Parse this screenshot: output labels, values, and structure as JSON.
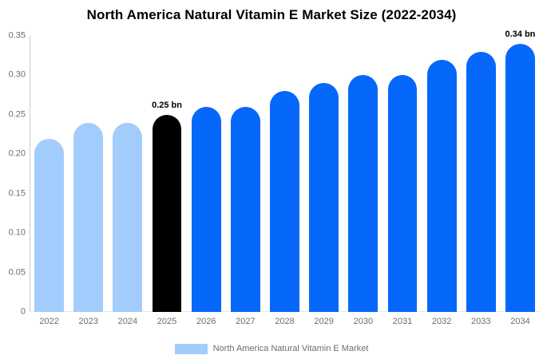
{
  "title": "North America Natural Vitamin E Market Size (2022-2034)",
  "chart_data": {
    "type": "bar",
    "title": "North America Natural Vitamin E Market Size (2022-2034)",
    "xlabel": "",
    "ylabel": "",
    "unit": "bn",
    "categories": [
      "2022",
      "2023",
      "2024",
      "2025",
      "2026",
      "2027",
      "2028",
      "2029",
      "2030",
      "2031",
      "2032",
      "2033",
      "2034"
    ],
    "values": [
      0.22,
      0.24,
      0.24,
      0.25,
      0.26,
      0.26,
      0.28,
      0.29,
      0.3,
      0.3,
      0.32,
      0.33,
      0.34
    ],
    "bar_colors": [
      "#a2ccfc",
      "#a2ccfc",
      "#a2ccfc",
      "#000000",
      "#0667fb",
      "#0667fb",
      "#0667fb",
      "#0667fb",
      "#0667fb",
      "#0667fb",
      "#0667fb",
      "#0667fb",
      "#0667fb"
    ],
    "annotations": [
      {
        "category": "2025",
        "label": "0.25 bn"
      },
      {
        "category": "2034",
        "label": "0.34 bn"
      }
    ],
    "ylim": [
      0,
      0.35
    ],
    "yticks": [
      "0",
      "0.05",
      "0.10",
      "0.15",
      "0.20",
      "0.25",
      "0.30",
      "0.35"
    ],
    "grid": false,
    "legend": {
      "position": "bottom",
      "entries": [
        {
          "label": "North America Natural Vitamin E Market",
          "color": "#a2ccfc"
        }
      ]
    }
  },
  "colors": {
    "historical_bars": "#a2ccfc",
    "highlight_bar": "#000000",
    "forecast_bars": "#0667fb",
    "axis_text": "#6d6d6d",
    "axis_line": "#cccccc",
    "baseline": "#e6e6e6",
    "title_text": "#000000"
  }
}
